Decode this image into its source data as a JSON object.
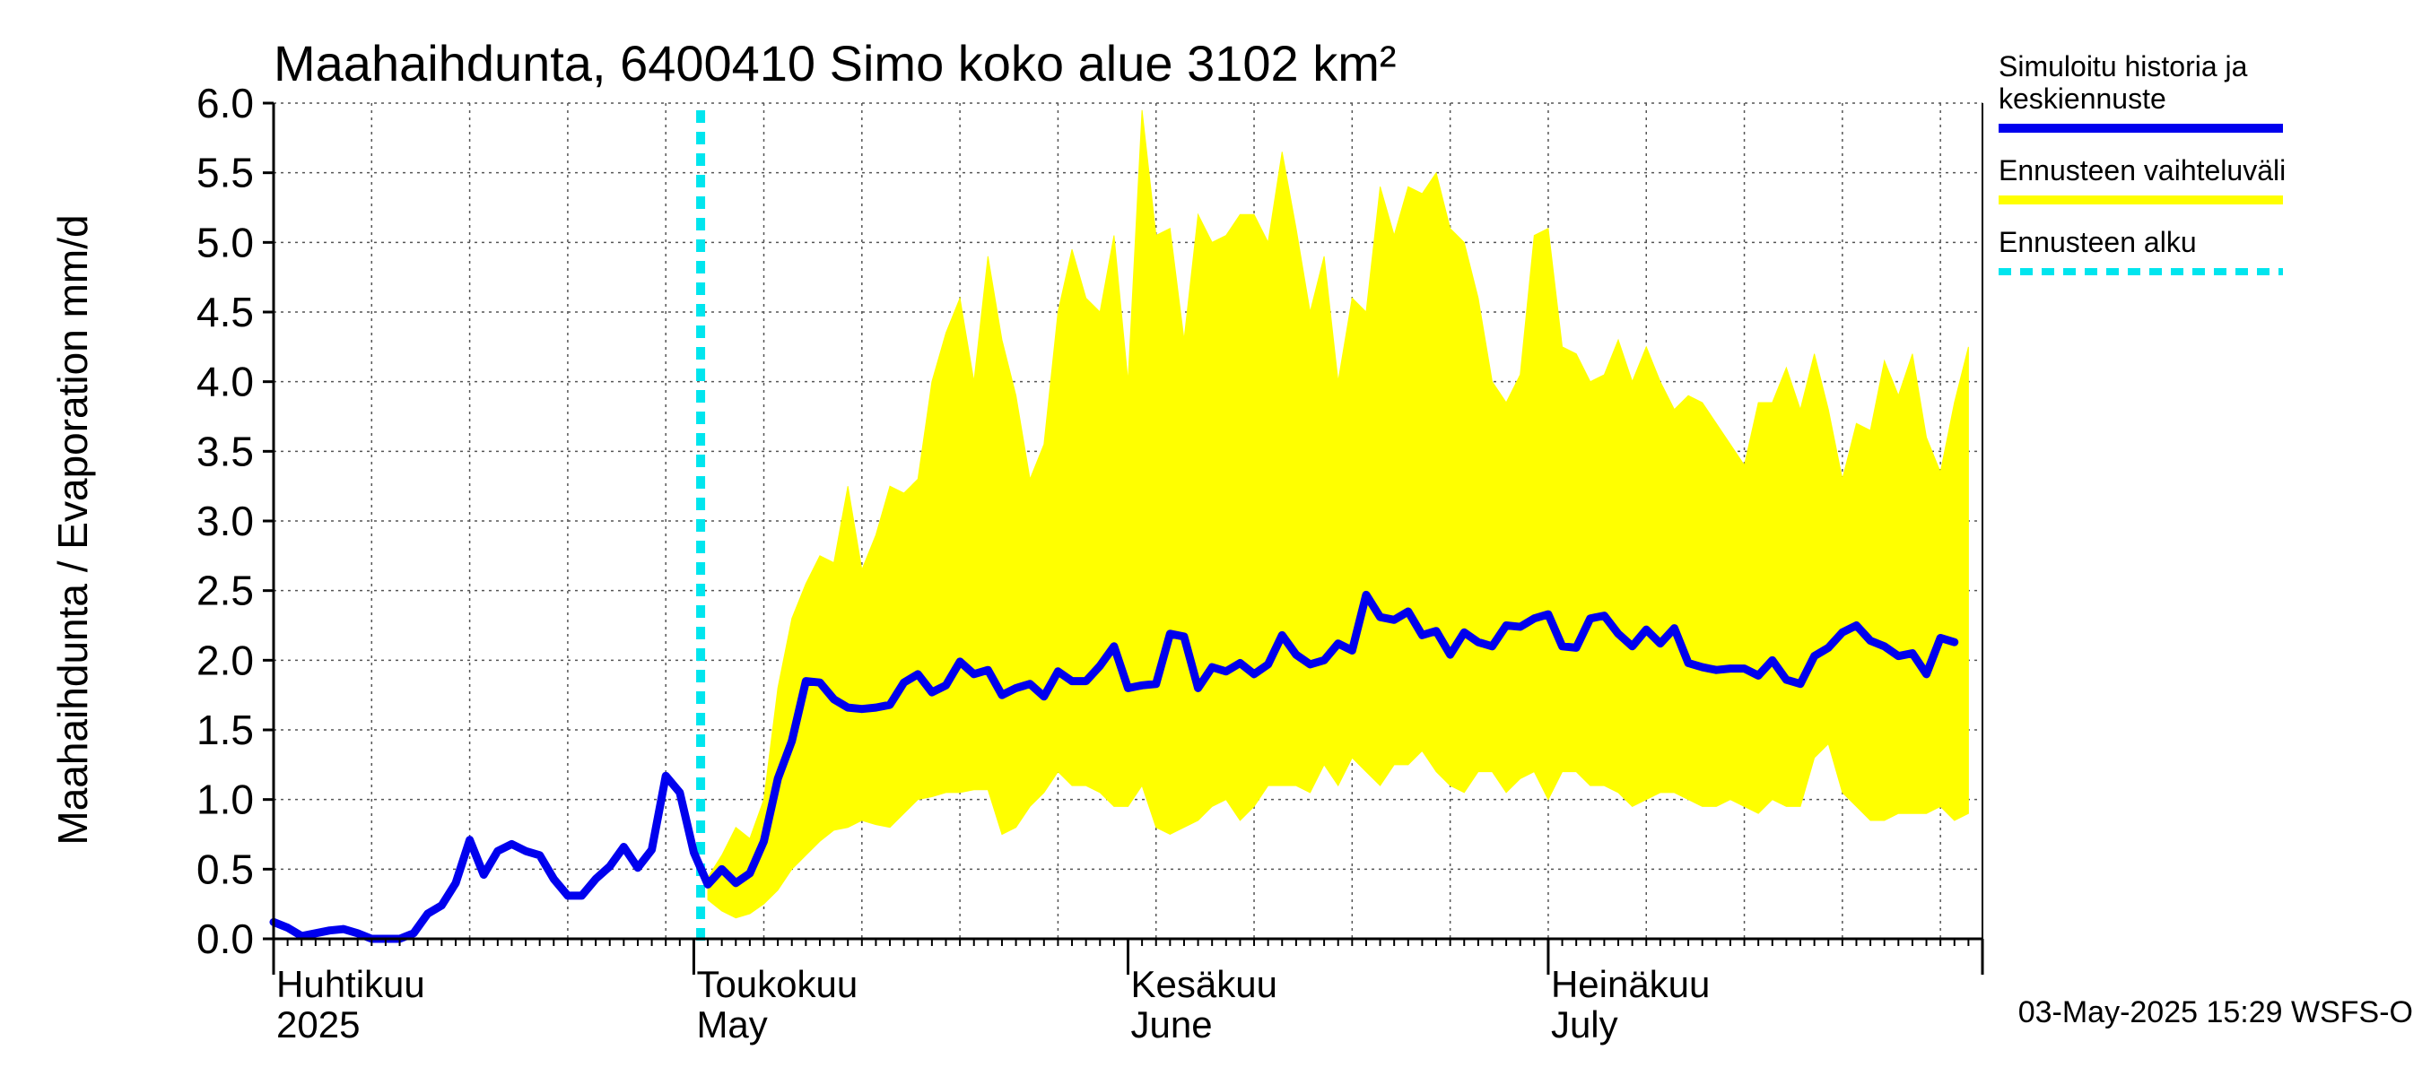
{
  "chart_data": {
    "type": "line",
    "title": "Maahaihdunta, 6400410 Simo koko alue 3102 km²",
    "ylabel": "Maahaihdunta / Evaporation   mm/d",
    "ylim": [
      0,
      6
    ],
    "y_ticks": [
      "0.0",
      "0.5",
      "1.0",
      "1.5",
      "2.0",
      "2.5",
      "3.0",
      "3.5",
      "4.0",
      "4.5",
      "5.0",
      "5.5",
      "6.0"
    ],
    "x_start": "2025-04-01",
    "x_end": "2025-08-01",
    "forecast_start": "2025-05-02",
    "month_labels": [
      {
        "date": "2025-04-01",
        "fi": "Huhtikuu",
        "en": "2025"
      },
      {
        "date": "2025-05-01",
        "fi": "Toukokuu",
        "en": "May"
      },
      {
        "date": "2025-06-01",
        "fi": "Kesäkuu",
        "en": "June"
      },
      {
        "date": "2025-07-01",
        "fi": "Heinäkuu",
        "en": "July"
      }
    ],
    "series": [
      {
        "name": "Simuloitu historia ja keskiennuste",
        "color": "#0000ee",
        "points": [
          [
            "2025-04-01",
            0.12
          ],
          [
            "2025-04-02",
            0.08
          ],
          [
            "2025-04-03",
            0.02
          ],
          [
            "2025-04-04",
            0.04
          ],
          [
            "2025-04-05",
            0.06
          ],
          [
            "2025-04-06",
            0.07
          ],
          [
            "2025-04-07",
            0.04
          ],
          [
            "2025-04-08",
            0.0
          ],
          [
            "2025-04-09",
            0.0
          ],
          [
            "2025-04-10",
            0.0
          ],
          [
            "2025-04-11",
            0.04
          ],
          [
            "2025-04-12",
            0.18
          ],
          [
            "2025-04-13",
            0.24
          ],
          [
            "2025-04-14",
            0.4
          ],
          [
            "2025-04-15",
            0.71
          ],
          [
            "2025-04-16",
            0.46
          ],
          [
            "2025-04-17",
            0.63
          ],
          [
            "2025-04-18",
            0.68
          ],
          [
            "2025-04-19",
            0.63
          ],
          [
            "2025-04-20",
            0.6
          ],
          [
            "2025-04-21",
            0.43
          ],
          [
            "2025-04-22",
            0.31
          ],
          [
            "2025-04-23",
            0.31
          ],
          [
            "2025-04-24",
            0.43
          ],
          [
            "2025-04-25",
            0.52
          ],
          [
            "2025-04-26",
            0.66
          ],
          [
            "2025-04-27",
            0.51
          ],
          [
            "2025-04-28",
            0.64
          ],
          [
            "2025-04-29",
            1.17
          ],
          [
            "2025-04-30",
            1.05
          ],
          [
            "2025-05-01",
            0.62
          ],
          [
            "2025-05-02",
            0.39
          ],
          [
            "2025-05-03",
            0.5
          ],
          [
            "2025-05-04",
            0.4
          ],
          [
            "2025-05-05",
            0.47
          ],
          [
            "2025-05-06",
            0.7
          ],
          [
            "2025-05-07",
            1.15
          ],
          [
            "2025-05-08",
            1.42
          ],
          [
            "2025-05-09",
            1.85
          ],
          [
            "2025-05-10",
            1.84
          ],
          [
            "2025-05-11",
            1.72
          ],
          [
            "2025-05-12",
            1.66
          ],
          [
            "2025-05-13",
            1.65
          ],
          [
            "2025-05-14",
            1.66
          ],
          [
            "2025-05-15",
            1.68
          ],
          [
            "2025-05-16",
            1.84
          ],
          [
            "2025-05-17",
            1.9
          ],
          [
            "2025-05-18",
            1.77
          ],
          [
            "2025-05-19",
            1.82
          ],
          [
            "2025-05-20",
            1.99
          ],
          [
            "2025-05-21",
            1.9
          ],
          [
            "2025-05-22",
            1.93
          ],
          [
            "2025-05-23",
            1.75
          ],
          [
            "2025-05-24",
            1.8
          ],
          [
            "2025-05-25",
            1.83
          ],
          [
            "2025-05-26",
            1.74
          ],
          [
            "2025-05-27",
            1.92
          ],
          [
            "2025-05-28",
            1.85
          ],
          [
            "2025-05-29",
            1.85
          ],
          [
            "2025-05-30",
            1.96
          ],
          [
            "2025-05-31",
            2.1
          ],
          [
            "2025-06-01",
            1.8
          ],
          [
            "2025-06-02",
            1.82
          ],
          [
            "2025-06-03",
            1.83
          ],
          [
            "2025-06-04",
            2.19
          ],
          [
            "2025-06-05",
            2.17
          ],
          [
            "2025-06-06",
            1.8
          ],
          [
            "2025-06-07",
            1.95
          ],
          [
            "2025-06-08",
            1.92
          ],
          [
            "2025-06-09",
            1.98
          ],
          [
            "2025-06-10",
            1.9
          ],
          [
            "2025-06-11",
            1.97
          ],
          [
            "2025-06-12",
            2.18
          ],
          [
            "2025-06-13",
            2.04
          ],
          [
            "2025-06-14",
            1.97
          ],
          [
            "2025-06-15",
            2.0
          ],
          [
            "2025-06-16",
            2.12
          ],
          [
            "2025-06-17",
            2.07
          ],
          [
            "2025-06-18",
            2.47
          ],
          [
            "2025-06-19",
            2.31
          ],
          [
            "2025-06-20",
            2.29
          ],
          [
            "2025-06-21",
            2.35
          ],
          [
            "2025-06-22",
            2.18
          ],
          [
            "2025-06-23",
            2.21
          ],
          [
            "2025-06-24",
            2.04
          ],
          [
            "2025-06-25",
            2.2
          ],
          [
            "2025-06-26",
            2.13
          ],
          [
            "2025-06-27",
            2.1
          ],
          [
            "2025-06-28",
            2.25
          ],
          [
            "2025-06-29",
            2.24
          ],
          [
            "2025-06-30",
            2.3
          ],
          [
            "2025-07-01",
            2.33
          ],
          [
            "2025-07-02",
            2.1
          ],
          [
            "2025-07-03",
            2.09
          ],
          [
            "2025-07-04",
            2.3
          ],
          [
            "2025-07-05",
            2.32
          ],
          [
            "2025-07-06",
            2.19
          ],
          [
            "2025-07-07",
            2.1
          ],
          [
            "2025-07-08",
            2.22
          ],
          [
            "2025-07-09",
            2.12
          ],
          [
            "2025-07-10",
            2.23
          ],
          [
            "2025-07-11",
            1.98
          ],
          [
            "2025-07-12",
            1.95
          ],
          [
            "2025-07-13",
            1.93
          ],
          [
            "2025-07-14",
            1.94
          ],
          [
            "2025-07-15",
            1.94
          ],
          [
            "2025-07-16",
            1.89
          ],
          [
            "2025-07-17",
            2.0
          ],
          [
            "2025-07-18",
            1.86
          ],
          [
            "2025-07-19",
            1.83
          ],
          [
            "2025-07-20",
            2.03
          ],
          [
            "2025-07-21",
            2.09
          ],
          [
            "2025-07-22",
            2.2
          ],
          [
            "2025-07-23",
            2.25
          ],
          [
            "2025-07-24",
            2.14
          ],
          [
            "2025-07-25",
            2.1
          ],
          [
            "2025-07-26",
            2.03
          ],
          [
            "2025-07-27",
            2.05
          ],
          [
            "2025-07-28",
            1.9
          ],
          [
            "2025-07-29",
            2.16
          ],
          [
            "2025-07-30",
            2.13
          ]
        ]
      },
      {
        "name": "Ennusteen vaihteluväli",
        "color": "#ffff00",
        "points": [
          [
            "2025-05-02",
            0.28,
            0.44
          ],
          [
            "2025-05-03",
            0.2,
            0.6
          ],
          [
            "2025-05-04",
            0.15,
            0.8
          ],
          [
            "2025-05-05",
            0.18,
            0.72
          ],
          [
            "2025-05-06",
            0.25,
            1.0
          ],
          [
            "2025-05-07",
            0.35,
            1.8
          ],
          [
            "2025-05-08",
            0.5,
            2.3
          ],
          [
            "2025-05-09",
            0.6,
            2.55
          ],
          [
            "2025-05-10",
            0.7,
            2.75
          ],
          [
            "2025-05-11",
            0.78,
            2.7
          ],
          [
            "2025-05-12",
            0.8,
            3.25
          ],
          [
            "2025-05-13",
            0.85,
            2.65
          ],
          [
            "2025-05-14",
            0.82,
            2.9
          ],
          [
            "2025-05-15",
            0.8,
            3.25
          ],
          [
            "2025-05-16",
            0.9,
            3.2
          ],
          [
            "2025-05-17",
            1.0,
            3.3
          ],
          [
            "2025-05-18",
            1.02,
            4.0
          ],
          [
            "2025-05-19",
            1.05,
            4.35
          ],
          [
            "2025-05-20",
            1.05,
            4.6
          ],
          [
            "2025-05-21",
            1.07,
            4.0
          ],
          [
            "2025-05-22",
            1.07,
            4.9
          ],
          [
            "2025-05-23",
            0.75,
            4.3
          ],
          [
            "2025-05-24",
            0.8,
            3.9
          ],
          [
            "2025-05-25",
            0.95,
            3.3
          ],
          [
            "2025-05-26",
            1.05,
            3.55
          ],
          [
            "2025-05-27",
            1.2,
            4.5
          ],
          [
            "2025-05-28",
            1.1,
            4.95
          ],
          [
            "2025-05-29",
            1.1,
            4.6
          ],
          [
            "2025-05-30",
            1.05,
            4.5
          ],
          [
            "2025-05-31",
            0.95,
            5.05
          ],
          [
            "2025-06-01",
            0.95,
            4.0
          ],
          [
            "2025-06-02",
            1.1,
            5.95
          ],
          [
            "2025-06-03",
            0.8,
            5.05
          ],
          [
            "2025-06-04",
            0.75,
            5.1
          ],
          [
            "2025-06-05",
            0.8,
            4.3
          ],
          [
            "2025-06-06",
            0.85,
            5.2
          ],
          [
            "2025-06-07",
            0.95,
            5.0
          ],
          [
            "2025-06-08",
            1.0,
            5.05
          ],
          [
            "2025-06-09",
            0.85,
            5.2
          ],
          [
            "2025-06-10",
            0.95,
            5.2
          ],
          [
            "2025-06-11",
            1.1,
            5.0
          ],
          [
            "2025-06-12",
            1.1,
            5.65
          ],
          [
            "2025-06-13",
            1.1,
            5.1
          ],
          [
            "2025-06-14",
            1.05,
            4.5
          ],
          [
            "2025-06-15",
            1.25,
            4.9
          ],
          [
            "2025-06-16",
            1.1,
            4.0
          ],
          [
            "2025-06-17",
            1.3,
            4.6
          ],
          [
            "2025-06-18",
            1.2,
            4.5
          ],
          [
            "2025-06-19",
            1.1,
            5.4
          ],
          [
            "2025-06-20",
            1.25,
            5.05
          ],
          [
            "2025-06-21",
            1.25,
            5.4
          ],
          [
            "2025-06-22",
            1.35,
            5.35
          ],
          [
            "2025-06-23",
            1.2,
            5.5
          ],
          [
            "2025-06-24",
            1.1,
            5.1
          ],
          [
            "2025-06-25",
            1.05,
            5.0
          ],
          [
            "2025-06-26",
            1.2,
            4.6
          ],
          [
            "2025-06-27",
            1.2,
            4.0
          ],
          [
            "2025-06-28",
            1.05,
            3.85
          ],
          [
            "2025-06-29",
            1.15,
            4.05
          ],
          [
            "2025-06-30",
            1.2,
            5.05
          ],
          [
            "2025-07-01",
            1.0,
            5.1
          ],
          [
            "2025-07-02",
            1.2,
            4.25
          ],
          [
            "2025-07-03",
            1.2,
            4.2
          ],
          [
            "2025-07-04",
            1.1,
            4.0
          ],
          [
            "2025-07-05",
            1.1,
            4.05
          ],
          [
            "2025-07-06",
            1.05,
            4.3
          ],
          [
            "2025-07-07",
            0.95,
            4.0
          ],
          [
            "2025-07-08",
            1.0,
            4.25
          ],
          [
            "2025-07-09",
            1.05,
            4.0
          ],
          [
            "2025-07-10",
            1.05,
            3.8
          ],
          [
            "2025-07-11",
            1.0,
            3.9
          ],
          [
            "2025-07-12",
            0.95,
            3.85
          ],
          [
            "2025-07-13",
            0.95,
            3.7
          ],
          [
            "2025-07-14",
            1.0,
            3.55
          ],
          [
            "2025-07-15",
            0.95,
            3.4
          ],
          [
            "2025-07-16",
            0.9,
            3.85
          ],
          [
            "2025-07-17",
            1.0,
            3.85
          ],
          [
            "2025-07-18",
            0.95,
            4.1
          ],
          [
            "2025-07-19",
            0.95,
            3.8
          ],
          [
            "2025-07-20",
            1.3,
            4.2
          ],
          [
            "2025-07-21",
            1.4,
            3.8
          ],
          [
            "2025-07-22",
            1.05,
            3.3
          ],
          [
            "2025-07-23",
            0.95,
            3.7
          ],
          [
            "2025-07-24",
            0.85,
            3.65
          ],
          [
            "2025-07-25",
            0.85,
            4.15
          ],
          [
            "2025-07-26",
            0.9,
            3.9
          ],
          [
            "2025-07-27",
            0.9,
            4.2
          ],
          [
            "2025-07-28",
            0.9,
            3.6
          ],
          [
            "2025-07-29",
            0.95,
            3.35
          ],
          [
            "2025-07-30",
            0.85,
            3.85
          ],
          [
            "2025-07-31",
            0.9,
            4.25
          ]
        ]
      }
    ],
    "grid": true
  },
  "legend": [
    {
      "label_lines": [
        "Simuloitu historia ja",
        "keskiennuste"
      ],
      "color": "#0000ee",
      "style": "solid"
    },
    {
      "label_lines": [
        "Ennusteen vaihteluväli"
      ],
      "color": "#ffff00",
      "style": "solid"
    },
    {
      "label_lines": [
        "Ennusteen alku"
      ],
      "color": "#00e5ee",
      "style": "dashed"
    }
  ],
  "footer": "03-May-2025 15:29 WSFS-O"
}
